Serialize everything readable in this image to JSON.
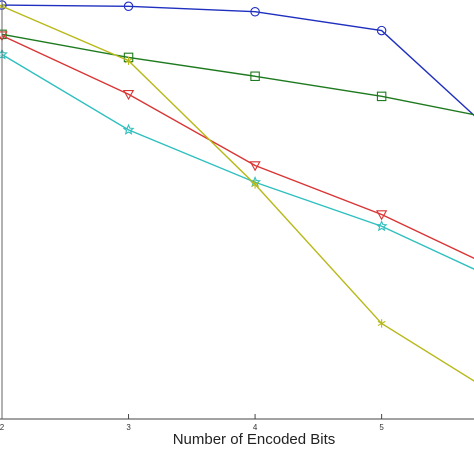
{
  "chart_data": {
    "type": "line",
    "title": "",
    "xlabel": "Number of Encoded Bits",
    "ylabel": "",
    "x": [
      2,
      3,
      4,
      5,
      6
    ],
    "xlim": [
      2,
      5.73
    ],
    "ylim": [
      0,
      1
    ],
    "x_tick_labels": [
      "2",
      "3",
      "4",
      "5"
    ],
    "grid": false,
    "series": [
      {
        "marker": "circle",
        "color": "#1f2fbf",
        "values": [
          0.988,
          0.985,
          0.972,
          0.927,
          0.65
        ]
      },
      {
        "marker": "square",
        "color": "#1e7a1e",
        "values": [
          0.918,
          0.863,
          0.818,
          0.77,
          0.71
        ]
      },
      {
        "marker": "triangle-down",
        "color": "#d93434",
        "values": [
          0.915,
          0.775,
          0.605,
          0.488,
          0.345
        ]
      },
      {
        "marker": "star",
        "color": "#2fbfbf",
        "values": [
          0.87,
          0.69,
          0.565,
          0.46,
          0.32
        ]
      },
      {
        "marker": "asterisk",
        "color": "#b8b818",
        "values": [
          0.985,
          0.855,
          0.56,
          0.228,
          0.04
        ]
      }
    ]
  }
}
